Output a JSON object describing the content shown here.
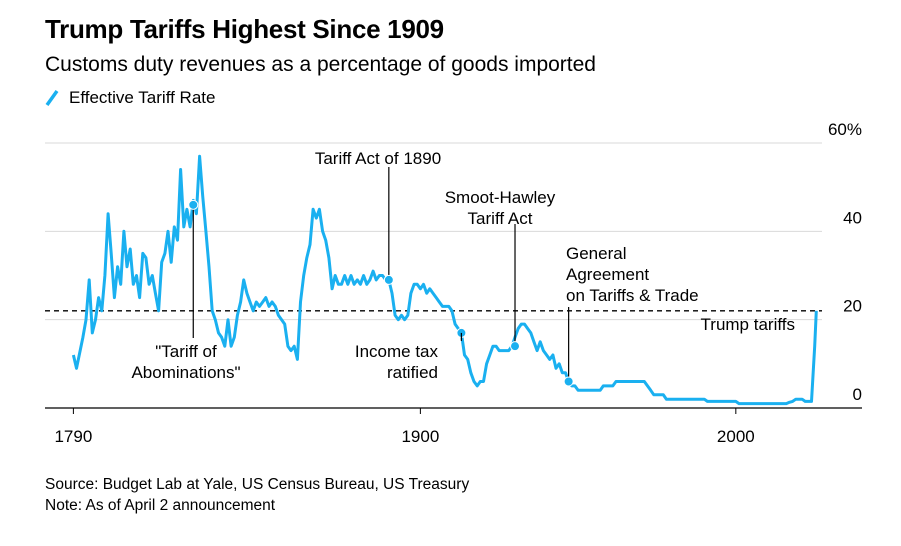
{
  "title": "Trump Tariffs Highest Since 1909",
  "subtitle": "Customs duty revenues as a percentage of goods imported",
  "legend": {
    "label": "Effective Tariff Rate",
    "color": "#1ab0f0"
  },
  "source": "Source: Budget Lab at Yale, US Census Bureau, US Treasury",
  "note": "Note: As of April 2 announcement",
  "chart_data": {
    "type": "line",
    "title": "Trump Tariffs Highest Since 1909",
    "subtitle": "Customs duty revenues as a percentage of goods imported",
    "xlabel": "",
    "ylabel": "",
    "xlim": [
      1781,
      2040
    ],
    "ylim": [
      0,
      60
    ],
    "x_ticks": [
      {
        "value": 1790,
        "label": "1790"
      },
      {
        "value": 1900,
        "label": "1900"
      },
      {
        "value": 2000,
        "label": "2000"
      }
    ],
    "y_ticks": [
      {
        "value": 0,
        "label": "0"
      },
      {
        "value": 20,
        "label": "20"
      },
      {
        "value": 40,
        "label": "40"
      },
      {
        "value": 60,
        "label": "60%"
      }
    ],
    "grid": "horizontal",
    "legend_position": "top-left",
    "series": [
      {
        "name": "Effective Tariff Rate",
        "color": "#1ab0f0",
        "points": [
          [
            1790,
            12
          ],
          [
            1791,
            9
          ],
          [
            1793,
            16
          ],
          [
            1794,
            20
          ],
          [
            1795,
            29
          ],
          [
            1796,
            17
          ],
          [
            1797,
            20
          ],
          [
            1798,
            25
          ],
          [
            1799,
            22
          ],
          [
            1800,
            30
          ],
          [
            1801,
            44
          ],
          [
            1802,
            35
          ],
          [
            1803,
            25
          ],
          [
            1804,
            32
          ],
          [
            1805,
            28
          ],
          [
            1806,
            40
          ],
          [
            1807,
            32
          ],
          [
            1808,
            36
          ],
          [
            1809,
            28
          ],
          [
            1810,
            30
          ],
          [
            1811,
            25
          ],
          [
            1812,
            35
          ],
          [
            1813,
            34
          ],
          [
            1814,
            28
          ],
          [
            1815,
            30
          ],
          [
            1816,
            26
          ],
          [
            1817,
            22
          ],
          [
            1818,
            33
          ],
          [
            1819,
            35
          ],
          [
            1820,
            40
          ],
          [
            1821,
            33
          ],
          [
            1822,
            41
          ],
          [
            1823,
            38
          ],
          [
            1824,
            54
          ],
          [
            1825,
            41
          ],
          [
            1826,
            45
          ],
          [
            1827,
            41
          ],
          [
            1828,
            47
          ],
          [
            1829,
            44
          ],
          [
            1830,
            57
          ],
          [
            1831,
            48
          ],
          [
            1832,
            40
          ],
          [
            1833,
            32
          ],
          [
            1834,
            22
          ],
          [
            1835,
            20
          ],
          [
            1836,
            17
          ],
          [
            1837,
            16
          ],
          [
            1838,
            14
          ],
          [
            1839,
            20
          ],
          [
            1840,
            14
          ],
          [
            1841,
            16
          ],
          [
            1842,
            21
          ],
          [
            1843,
            24
          ],
          [
            1844,
            29
          ],
          [
            1845,
            26
          ],
          [
            1846,
            24
          ],
          [
            1847,
            22
          ],
          [
            1848,
            24
          ],
          [
            1849,
            23
          ],
          [
            1850,
            24
          ],
          [
            1851,
            25
          ],
          [
            1852,
            23
          ],
          [
            1853,
            24
          ],
          [
            1854,
            23
          ],
          [
            1855,
            21
          ],
          [
            1856,
            20
          ],
          [
            1857,
            19
          ],
          [
            1858,
            14
          ],
          [
            1859,
            13
          ],
          [
            1860,
            14
          ],
          [
            1861,
            11
          ],
          [
            1862,
            24
          ],
          [
            1863,
            30
          ],
          [
            1864,
            34
          ],
          [
            1865,
            37
          ],
          [
            1866,
            45
          ],
          [
            1867,
            43
          ],
          [
            1868,
            45
          ],
          [
            1869,
            40
          ],
          [
            1870,
            38
          ],
          [
            1871,
            34
          ],
          [
            1872,
            27
          ],
          [
            1873,
            30
          ],
          [
            1874,
            28
          ],
          [
            1875,
            28
          ],
          [
            1876,
            30
          ],
          [
            1877,
            28
          ],
          [
            1878,
            30
          ],
          [
            1879,
            28
          ],
          [
            1880,
            29
          ],
          [
            1881,
            28
          ],
          [
            1882,
            30
          ],
          [
            1883,
            28
          ],
          [
            1884,
            29
          ],
          [
            1885,
            31
          ],
          [
            1886,
            29
          ],
          [
            1887,
            30
          ],
          [
            1888,
            30
          ],
          [
            1889,
            29
          ],
          [
            1890,
            29
          ],
          [
            1891,
            26
          ],
          [
            1892,
            21
          ],
          [
            1893,
            20
          ],
          [
            1894,
            21
          ],
          [
            1895,
            20
          ],
          [
            1896,
            21
          ],
          [
            1897,
            26
          ],
          [
            1898,
            28
          ],
          [
            1899,
            28
          ],
          [
            1900,
            27
          ],
          [
            1901,
            28
          ],
          [
            1902,
            26
          ],
          [
            1903,
            27
          ],
          [
            1904,
            26
          ],
          [
            1905,
            25
          ],
          [
            1906,
            24
          ],
          [
            1907,
            23
          ],
          [
            1908,
            23
          ],
          [
            1909,
            23
          ],
          [
            1910,
            22
          ],
          [
            1911,
            19
          ],
          [
            1912,
            18
          ],
          [
            1913,
            17
          ],
          [
            1914,
            12
          ],
          [
            1915,
            11
          ],
          [
            1916,
            8
          ],
          [
            1917,
            6
          ],
          [
            1918,
            5
          ],
          [
            1919,
            6
          ],
          [
            1920,
            6
          ],
          [
            1921,
            10
          ],
          [
            1922,
            12
          ],
          [
            1923,
            14
          ],
          [
            1924,
            14
          ],
          [
            1925,
            13
          ],
          [
            1926,
            13
          ],
          [
            1927,
            13
          ],
          [
            1928,
            13
          ],
          [
            1929,
            14
          ],
          [
            1930,
            16
          ],
          [
            1931,
            18
          ],
          [
            1932,
            19
          ],
          [
            1933,
            19
          ],
          [
            1934,
            18
          ],
          [
            1935,
            17
          ],
          [
            1936,
            15
          ],
          [
            1937,
            13
          ],
          [
            1938,
            15
          ],
          [
            1939,
            13
          ],
          [
            1940,
            12
          ],
          [
            1941,
            11
          ],
          [
            1942,
            12
          ],
          [
            1943,
            9
          ],
          [
            1944,
            10
          ],
          [
            1945,
            8
          ],
          [
            1946,
            8
          ],
          [
            1947,
            6
          ],
          [
            1948,
            5
          ],
          [
            1949,
            5
          ],
          [
            1950,
            4
          ],
          [
            1951,
            4
          ],
          [
            1952,
            4
          ],
          [
            1953,
            4
          ],
          [
            1954,
            4
          ],
          [
            1955,
            4
          ],
          [
            1956,
            4
          ],
          [
            1957,
            4
          ],
          [
            1958,
            5
          ],
          [
            1959,
            5
          ],
          [
            1960,
            5
          ],
          [
            1961,
            5
          ],
          [
            1962,
            6
          ],
          [
            1963,
            6
          ],
          [
            1964,
            6
          ],
          [
            1965,
            6
          ],
          [
            1966,
            6
          ],
          [
            1967,
            6
          ],
          [
            1968,
            6
          ],
          [
            1969,
            6
          ],
          [
            1970,
            6
          ],
          [
            1971,
            6
          ],
          [
            1972,
            5
          ],
          [
            1973,
            4
          ],
          [
            1974,
            3
          ],
          [
            1975,
            3
          ],
          [
            1976,
            3
          ],
          [
            1977,
            3
          ],
          [
            1978,
            2
          ],
          [
            1979,
            2
          ],
          [
            1980,
            2
          ],
          [
            1981,
            2
          ],
          [
            1982,
            2
          ],
          [
            1983,
            2
          ],
          [
            1984,
            2
          ],
          [
            1985,
            2
          ],
          [
            1986,
            2
          ],
          [
            1987,
            2
          ],
          [
            1988,
            2
          ],
          [
            1989,
            2
          ],
          [
            1990,
            2
          ],
          [
            1991,
            1.5
          ],
          [
            1992,
            1.5
          ],
          [
            1993,
            1.5
          ],
          [
            1994,
            1.5
          ],
          [
            1995,
            1.5
          ],
          [
            1996,
            1.5
          ],
          [
            1997,
            1.5
          ],
          [
            1998,
            1.5
          ],
          [
            1999,
            1.5
          ],
          [
            2000,
            1.5
          ],
          [
            2001,
            1
          ],
          [
            2002,
            1
          ],
          [
            2003,
            1
          ],
          [
            2004,
            1
          ],
          [
            2005,
            1
          ],
          [
            2006,
            1
          ],
          [
            2007,
            1
          ],
          [
            2008,
            1
          ],
          [
            2009,
            1
          ],
          [
            2010,
            1
          ],
          [
            2011,
            1
          ],
          [
            2012,
            1
          ],
          [
            2013,
            1
          ],
          [
            2014,
            1
          ],
          [
            2015,
            1
          ],
          [
            2016,
            1
          ],
          [
            2017,
            1.3
          ],
          [
            2018,
            1.5
          ],
          [
            2019,
            2
          ],
          [
            2020,
            2
          ],
          [
            2021,
            2
          ],
          [
            2022,
            1.5
          ],
          [
            2023,
            1.5
          ],
          [
            2024,
            1.5
          ],
          [
            2025,
            14
          ],
          [
            2025.5,
            22
          ]
        ]
      }
    ],
    "reference_lines": [
      {
        "name": "2025 tariff level",
        "value": 22,
        "style": "dashed"
      }
    ],
    "annotations": [
      {
        "name": "tariff-of-abominations",
        "lines": [
          "\"Tariff of",
          "Abominations\""
        ],
        "x": 1828,
        "y": 46
      },
      {
        "name": "tariff-act-1890",
        "lines": [
          "Tariff Act of 1890"
        ],
        "x": 1890,
        "y": 29
      },
      {
        "name": "income-tax",
        "lines": [
          "Income tax",
          "ratified"
        ],
        "x": 1913,
        "y": 17
      },
      {
        "name": "smoot-hawley",
        "lines": [
          "Smoot-Hawley",
          "Tariff Act"
        ],
        "x": 1930,
        "y": 14
      },
      {
        "name": "gatt",
        "lines": [
          "General",
          "Agreement",
          "on Tariffs & Trade"
        ],
        "x": 1947,
        "y": 6
      },
      {
        "name": "trump-tariffs",
        "lines": [
          "Trump tariffs"
        ],
        "x": 2025.5,
        "y": 22
      }
    ]
  }
}
